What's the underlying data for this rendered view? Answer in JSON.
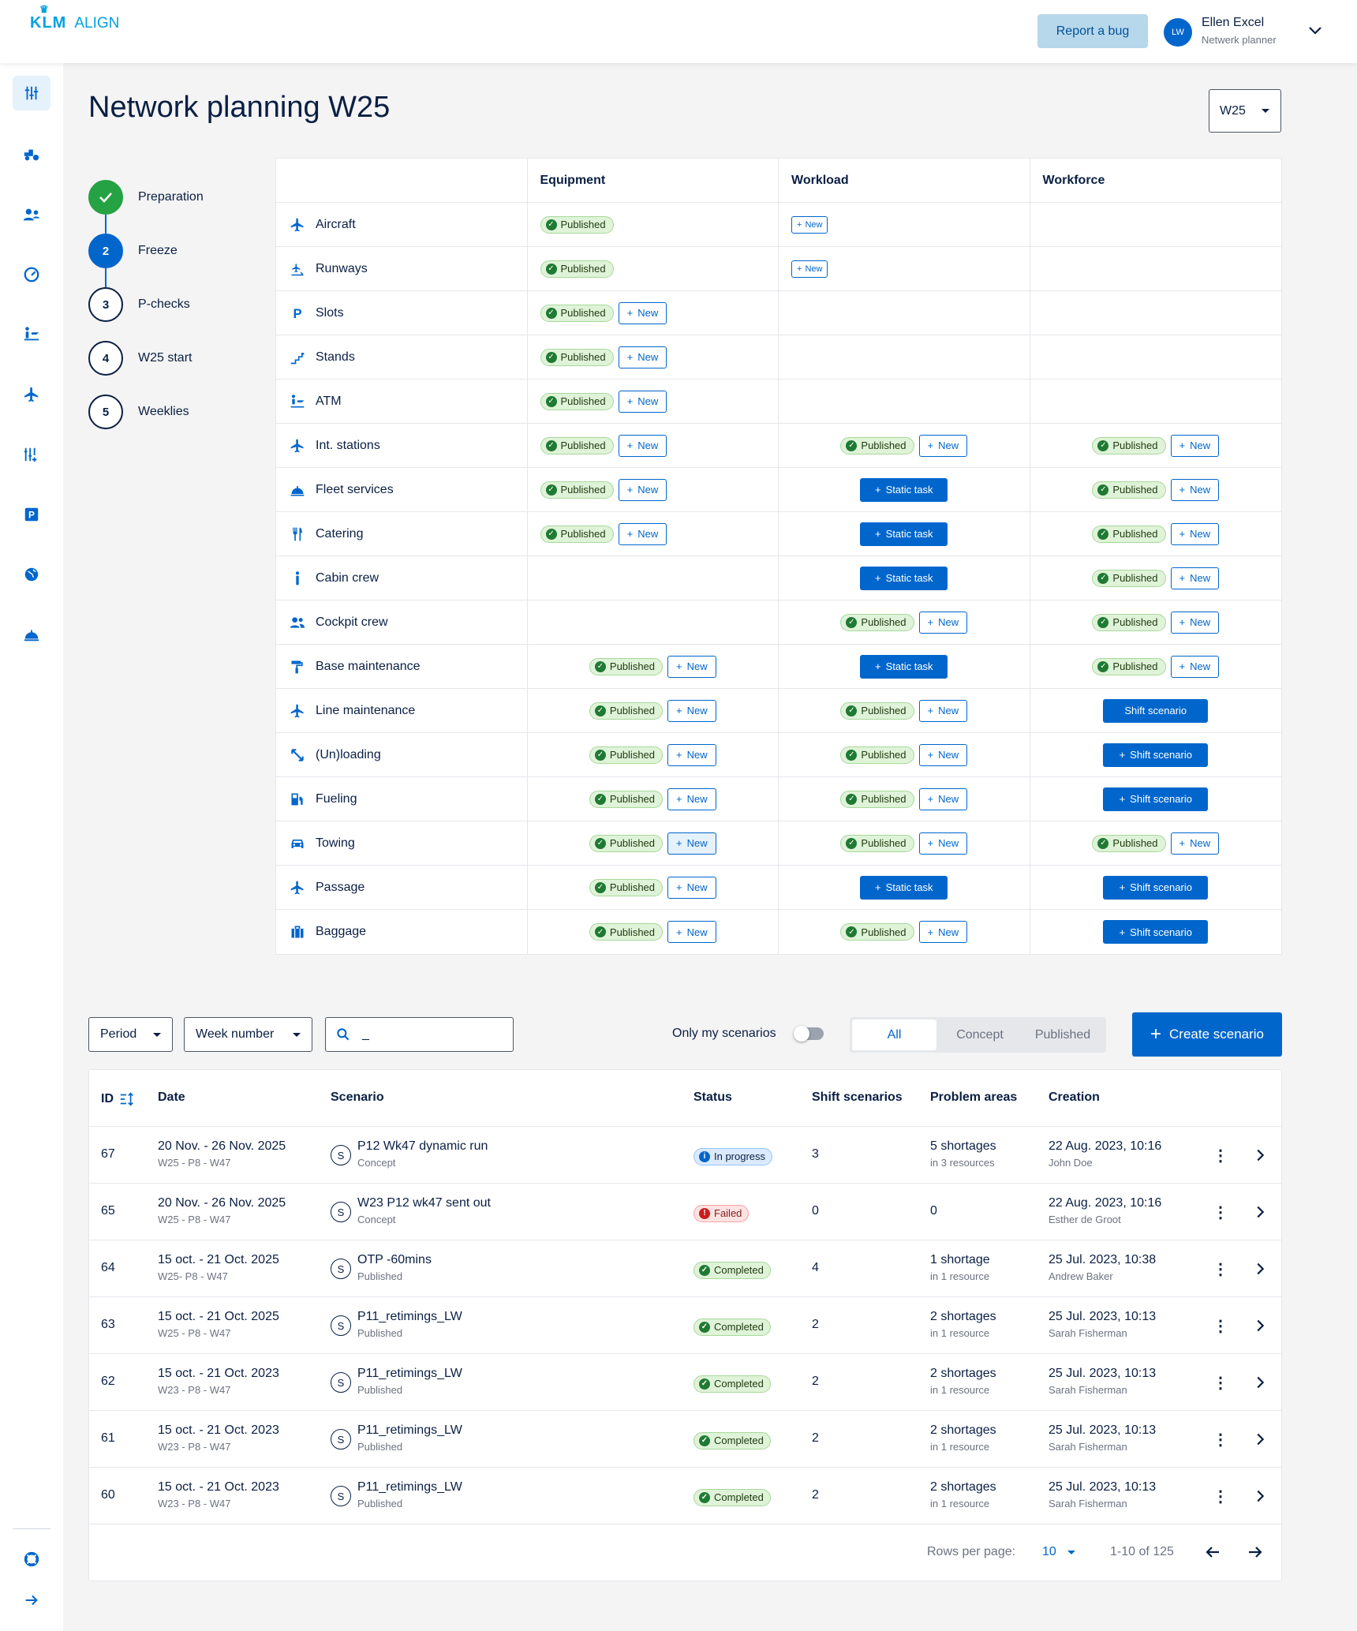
{
  "header": {
    "logo_brand": "KLM",
    "logo_app": "ALIGN",
    "report_bug": "Report a bug",
    "user_initials": "LW",
    "user_name": "Ellen Excel",
    "user_role": "Netwerk planner"
  },
  "sidenav": {
    "icons": [
      "sliders-icon",
      "tractor-icon",
      "staff-icon",
      "gauge-icon",
      "passenger-icon",
      "airplane-icon",
      "adjust-icon",
      "parking-icon",
      "globe-icon",
      "fleet-service-icon"
    ],
    "bottom_icons": [
      "support-icon",
      "expand-arrow-icon"
    ]
  },
  "page": {
    "title": "Network planning W25",
    "week_select": "W25"
  },
  "steps": [
    {
      "num": "",
      "label": "Preparation",
      "state": "done"
    },
    {
      "num": "2",
      "label": "Freeze",
      "state": "current"
    },
    {
      "num": "3",
      "label": "P-checks",
      "state": "todo"
    },
    {
      "num": "4",
      "label": "W25 start",
      "state": "todo"
    },
    {
      "num": "5",
      "label": "Weeklies",
      "state": "todo"
    }
  ],
  "matrix": {
    "columns": [
      "Equipment",
      "Workload",
      "Workforce"
    ],
    "labels": {
      "published": "Published",
      "new": "New",
      "static": "Static task",
      "shift": "Shift scenario"
    },
    "rows": [
      {
        "name": "Aircraft",
        "icon": "airplane-icon",
        "cells": [
          {
            "t": "pub",
            "align": "left"
          },
          {
            "t": "newsmall",
            "align": "left"
          },
          {
            "t": "none"
          }
        ]
      },
      {
        "name": "Runways",
        "icon": "runway-icon",
        "cells": [
          {
            "t": "pub",
            "align": "left"
          },
          {
            "t": "newsmall",
            "align": "left"
          },
          {
            "t": "none"
          }
        ]
      },
      {
        "name": "Slots",
        "icon": "parking-icon",
        "cells": [
          {
            "t": "pubnew",
            "align": "left"
          },
          {
            "t": "none"
          },
          {
            "t": "none"
          }
        ]
      },
      {
        "name": "Stands",
        "icon": "stairs-icon",
        "cells": [
          {
            "t": "pubnew",
            "align": "left"
          },
          {
            "t": "none"
          },
          {
            "t": "none"
          }
        ]
      },
      {
        "name": "ATM",
        "icon": "atm-icon",
        "cells": [
          {
            "t": "pubnew",
            "align": "left"
          },
          {
            "t": "none"
          },
          {
            "t": "none"
          }
        ]
      },
      {
        "name": "Int. stations",
        "icon": "airplane-icon",
        "cells": [
          {
            "t": "pubnew",
            "align": "left"
          },
          {
            "t": "pubnew",
            "align": "center"
          },
          {
            "t": "pubnew",
            "align": "center"
          }
        ]
      },
      {
        "name": "Fleet services",
        "icon": "fleet-service-icon",
        "cells": [
          {
            "t": "pubnew",
            "align": "left"
          },
          {
            "t": "static",
            "align": "center"
          },
          {
            "t": "pubnew",
            "align": "center"
          }
        ]
      },
      {
        "name": "Catering",
        "icon": "cutlery-icon",
        "cells": [
          {
            "t": "pubnew",
            "align": "left"
          },
          {
            "t": "static",
            "align": "center"
          },
          {
            "t": "pubnew",
            "align": "center"
          }
        ]
      },
      {
        "name": "Cabin crew",
        "icon": "person-icon",
        "cells": [
          {
            "t": "none"
          },
          {
            "t": "static",
            "align": "center"
          },
          {
            "t": "pubnew",
            "align": "center"
          }
        ]
      },
      {
        "name": "Cockpit crew",
        "icon": "group-icon",
        "cells": [
          {
            "t": "none"
          },
          {
            "t": "pubnew",
            "align": "center"
          },
          {
            "t": "pubnew",
            "align": "center"
          }
        ]
      },
      {
        "name": "Base maintenance",
        "icon": "paint-roller-icon",
        "cells": [
          {
            "t": "pubnew",
            "align": "center"
          },
          {
            "t": "static",
            "align": "center"
          },
          {
            "t": "pubnew",
            "align": "center"
          }
        ]
      },
      {
        "name": "Line maintenance",
        "icon": "airplane-icon",
        "cells": [
          {
            "t": "pubnew",
            "align": "center"
          },
          {
            "t": "pubnew",
            "align": "center"
          },
          {
            "t": "shiftnoplus",
            "align": "center"
          }
        ]
      },
      {
        "name": "(Un)loading",
        "icon": "loading-arrows-icon",
        "cells": [
          {
            "t": "pubnew",
            "align": "center"
          },
          {
            "t": "pubnew",
            "align": "center"
          },
          {
            "t": "shift",
            "align": "center"
          }
        ]
      },
      {
        "name": "Fueling",
        "icon": "fuel-icon",
        "cells": [
          {
            "t": "pubnew",
            "align": "center"
          },
          {
            "t": "pubnew",
            "align": "center"
          },
          {
            "t": "shift",
            "align": "center"
          }
        ]
      },
      {
        "name": "Towing",
        "icon": "car-icon",
        "cells": [
          {
            "t": "pubnewhover",
            "align": "center"
          },
          {
            "t": "pubnew",
            "align": "center"
          },
          {
            "t": "pubnew",
            "align": "center"
          }
        ]
      },
      {
        "name": "Passage",
        "icon": "airplane-icon",
        "cells": [
          {
            "t": "pubnew",
            "align": "center"
          },
          {
            "t": "static",
            "align": "center"
          },
          {
            "t": "shift",
            "align": "center"
          }
        ]
      },
      {
        "name": "Baggage",
        "icon": "suitcase-icon",
        "cells": [
          {
            "t": "pubnew",
            "align": "center"
          },
          {
            "t": "pubnew",
            "align": "center"
          },
          {
            "t": "shift",
            "align": "center"
          }
        ]
      }
    ]
  },
  "filters": {
    "period": "Period",
    "week_number": "Week number",
    "search_value": "_",
    "only_mine": "Only my scenarios",
    "segments": [
      "All",
      "Concept",
      "Published"
    ],
    "create": "Create scenario"
  },
  "table": {
    "headers": {
      "id": "ID",
      "date": "Date",
      "scenario": "Scenario",
      "status": "Status",
      "shift": "Shift scenarios",
      "problem": "Problem areas",
      "creation": "Creation"
    },
    "scenario_letter": "S",
    "rows": [
      {
        "id": "67",
        "date": "20 Nov. - 26 Nov. 2025",
        "period": "W25 - P8 - W47",
        "name": "P12 Wk47 dynamic run",
        "state": "Concept",
        "status": "In progress",
        "status_kind": "progress",
        "shift": "3",
        "problem": "5 shortages",
        "problem_sub": "in 3 resources",
        "created": "22 Aug. 2023, 10:16",
        "author": "John Doe"
      },
      {
        "id": "65",
        "date": "20 Nov. - 26 Nov. 2025",
        "period": "W25 - P8 - W47",
        "name": "W23 P12 wk47 sent out",
        "state": "Concept",
        "status": "Failed",
        "status_kind": "failed",
        "shift": "0",
        "problem": "0",
        "problem_sub": "",
        "created": "22 Aug. 2023, 10:16",
        "author": "Esther de Groot"
      },
      {
        "id": "64",
        "date": "15 oct. - 21 Oct. 2025",
        "period": "W25- P8 - W47",
        "name": "OTP -60mins",
        "state": "Published",
        "status": "Completed",
        "status_kind": "completed",
        "shift": "4",
        "problem": "1 shortage",
        "problem_sub": "in 1 resource",
        "created": "25 Jul. 2023, 10:38",
        "author": "Andrew Baker"
      },
      {
        "id": "63",
        "date": "15 oct. - 21 Oct. 2025",
        "period": "W25 - P8 - W47",
        "name": "P11_retimings_LW",
        "state": "Published",
        "status": "Completed",
        "status_kind": "completed",
        "shift": "2",
        "problem": "2 shortages",
        "problem_sub": "in 1 resource",
        "created": "25 Jul. 2023, 10:13",
        "author": "Sarah Fisherman"
      },
      {
        "id": "62",
        "date": "15 oct. - 21 Oct. 2023",
        "period": "W23 - P8 - W47",
        "name": "P11_retimings_LW",
        "state": "Published",
        "status": "Completed",
        "status_kind": "completed",
        "shift": "2",
        "problem": "2 shortages",
        "problem_sub": "in 1 resource",
        "created": "25 Jul. 2023, 10:13",
        "author": "Sarah Fisherman"
      },
      {
        "id": "61",
        "date": "15 oct. - 21 Oct. 2023",
        "period": "W23 - P8 - W47",
        "name": "P11_retimings_LW",
        "state": "Published",
        "status": "Completed",
        "status_kind": "completed",
        "shift": "2",
        "problem": "2 shortages",
        "problem_sub": "in 1 resource",
        "created": "25 Jul. 2023, 10:13",
        "author": "Sarah Fisherman"
      },
      {
        "id": "60",
        "date": "15 oct. - 21 Oct. 2023",
        "period": "W23 - P8 - W47",
        "name": "P11_retimings_LW",
        "state": "Published",
        "status": "Completed",
        "status_kind": "completed",
        "shift": "2",
        "problem": "2 shortages",
        "problem_sub": "in 1 resource",
        "created": "25 Jul. 2023, 10:13",
        "author": "Sarah Fisherman"
      }
    ],
    "footer": {
      "rows_per_page_label": "Rows per page:",
      "rows_per_page": "10",
      "range": "1-10 of 125"
    }
  },
  "colors": {
    "primary": "#0066cc",
    "success": "#25a244",
    "navy": "#0a1f44"
  }
}
